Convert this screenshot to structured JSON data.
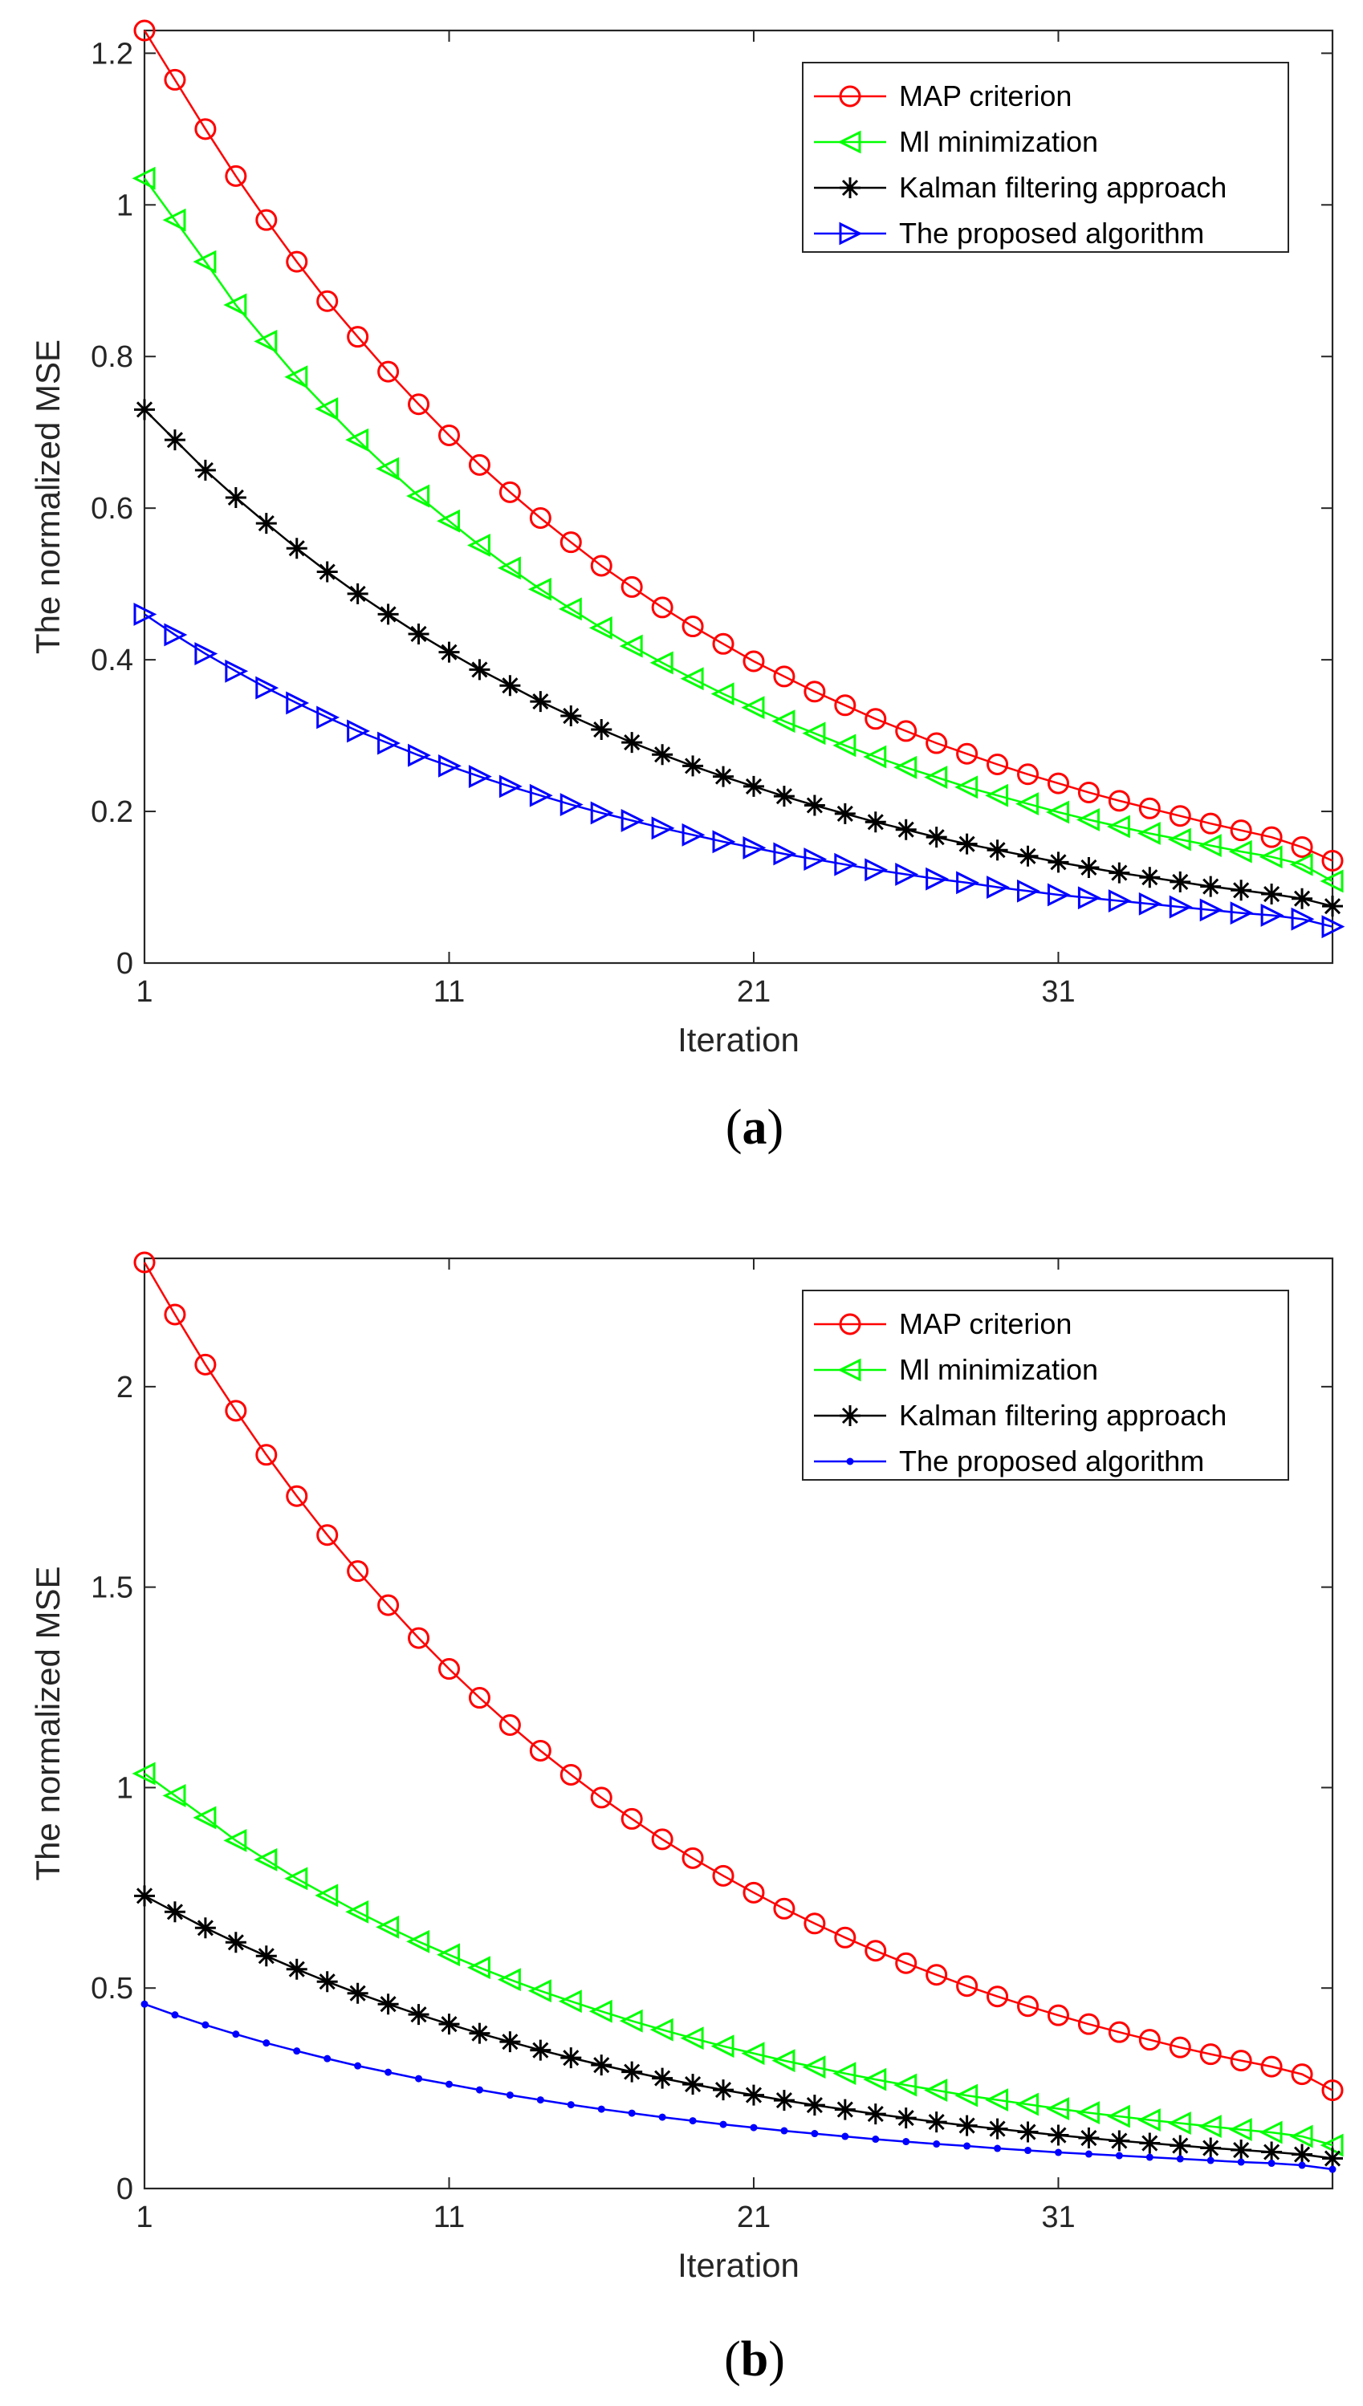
{
  "colors": {
    "map": "#ff0000",
    "ml": "#00ff00",
    "kalman": "#000000",
    "proposed": "#0000ff"
  },
  "chart_data": [
    {
      "type": "line",
      "caption_letter": "a",
      "xlabel": "Iteration",
      "ylabel": "The normalized MSE",
      "xlim": [
        1,
        40
      ],
      "ylim": [
        0,
        1.23
      ],
      "xticks": [
        1,
        11,
        21,
        31
      ],
      "xtick_labels": [
        "1",
        "11",
        "21",
        "31"
      ],
      "yticks": [
        0,
        0.2,
        0.4,
        0.6,
        0.8,
        1.0,
        1.2
      ],
      "ytick_labels": [
        "0",
        "0.2",
        "0.4",
        "0.6",
        "0.8",
        "1",
        "1.2"
      ],
      "legend_position": "top-right",
      "x": [
        1,
        2,
        3,
        4,
        5,
        6,
        7,
        8,
        9,
        10,
        11,
        12,
        13,
        14,
        15,
        16,
        17,
        18,
        19,
        20,
        21,
        22,
        23,
        24,
        25,
        26,
        27,
        28,
        29,
        30,
        31,
        32,
        33,
        34,
        35,
        36,
        37,
        38,
        39,
        40
      ],
      "series": [
        {
          "name": "MAP criterion",
          "color_key": "map",
          "marker": "circle",
          "values": [
            1.23,
            1.165,
            1.1,
            1.038,
            0.98,
            0.925,
            0.873,
            0.826,
            0.78,
            0.737,
            0.696,
            0.657,
            0.621,
            0.587,
            0.555,
            0.524,
            0.496,
            0.469,
            0.444,
            0.421,
            0.398,
            0.378,
            0.358,
            0.34,
            0.322,
            0.306,
            0.29,
            0.276,
            0.262,
            0.249,
            0.237,
            0.225,
            0.214,
            0.204,
            0.194,
            0.184,
            0.175,
            0.166,
            0.153,
            0.135
          ]
        },
        {
          "name": "Ml minimization",
          "color_key": "ml",
          "marker": "triangle-left",
          "values": [
            1.035,
            0.98,
            0.925,
            0.868,
            0.82,
            0.773,
            0.731,
            0.69,
            0.652,
            0.616,
            0.583,
            0.551,
            0.521,
            0.493,
            0.467,
            0.442,
            0.418,
            0.396,
            0.375,
            0.355,
            0.337,
            0.319,
            0.303,
            0.287,
            0.272,
            0.258,
            0.245,
            0.232,
            0.221,
            0.21,
            0.199,
            0.189,
            0.18,
            0.171,
            0.163,
            0.155,
            0.147,
            0.14,
            0.13,
            0.108
          ]
        },
        {
          "name": "Kalman filtering approach",
          "color_key": "kalman",
          "marker": "asterisk",
          "values": [
            0.73,
            0.69,
            0.65,
            0.614,
            0.58,
            0.547,
            0.516,
            0.487,
            0.46,
            0.434,
            0.41,
            0.387,
            0.366,
            0.345,
            0.326,
            0.308,
            0.291,
            0.275,
            0.26,
            0.246,
            0.233,
            0.22,
            0.208,
            0.197,
            0.186,
            0.176,
            0.166,
            0.157,
            0.149,
            0.141,
            0.133,
            0.126,
            0.119,
            0.113,
            0.107,
            0.101,
            0.096,
            0.091,
            0.085,
            0.075
          ]
        },
        {
          "name": "The proposed algorithm",
          "color_key": "proposed",
          "marker": "triangle-right",
          "values": [
            0.46,
            0.433,
            0.408,
            0.385,
            0.363,
            0.343,
            0.324,
            0.306,
            0.29,
            0.274,
            0.26,
            0.246,
            0.233,
            0.221,
            0.209,
            0.198,
            0.188,
            0.178,
            0.169,
            0.16,
            0.152,
            0.144,
            0.137,
            0.13,
            0.123,
            0.117,
            0.111,
            0.106,
            0.1,
            0.095,
            0.09,
            0.086,
            0.082,
            0.078,
            0.074,
            0.07,
            0.066,
            0.063,
            0.058,
            0.048
          ]
        }
      ]
    },
    {
      "type": "line",
      "caption_letter": "b",
      "xlabel": "Iteration",
      "ylabel": "The normalized MSE",
      "xlim": [
        1,
        40
      ],
      "ylim": [
        0,
        2.32
      ],
      "xticks": [
        1,
        11,
        21,
        31
      ],
      "xtick_labels": [
        "1",
        "11",
        "21",
        "31"
      ],
      "yticks": [
        0,
        0.5,
        1.0,
        1.5,
        2.0
      ],
      "ytick_labels": [
        "0",
        "0.5",
        "1",
        "1.5",
        "2"
      ],
      "legend_position": "top-right",
      "x": [
        1,
        2,
        3,
        4,
        5,
        6,
        7,
        8,
        9,
        10,
        11,
        12,
        13,
        14,
        15,
        16,
        17,
        18,
        19,
        20,
        21,
        22,
        23,
        24,
        25,
        26,
        27,
        28,
        29,
        30,
        31,
        32,
        33,
        34,
        35,
        36,
        37,
        38,
        39,
        40
      ],
      "series": [
        {
          "name": "MAP criterion",
          "color_key": "map",
          "marker": "circle",
          "values": [
            2.31,
            2.18,
            2.055,
            1.94,
            1.83,
            1.727,
            1.63,
            1.54,
            1.455,
            1.373,
            1.296,
            1.224,
            1.156,
            1.092,
            1.032,
            0.975,
            0.922,
            0.871,
            0.824,
            0.78,
            0.738,
            0.698,
            0.661,
            0.626,
            0.593,
            0.562,
            0.533,
            0.505,
            0.479,
            0.455,
            0.432,
            0.41,
            0.39,
            0.371,
            0.352,
            0.335,
            0.319,
            0.304,
            0.285,
            0.245
          ]
        },
        {
          "name": "Ml minimization",
          "color_key": "ml",
          "marker": "triangle-left",
          "values": [
            1.035,
            0.98,
            0.925,
            0.868,
            0.82,
            0.773,
            0.731,
            0.69,
            0.652,
            0.616,
            0.583,
            0.551,
            0.521,
            0.493,
            0.467,
            0.442,
            0.418,
            0.396,
            0.375,
            0.355,
            0.337,
            0.319,
            0.303,
            0.287,
            0.272,
            0.258,
            0.245,
            0.232,
            0.221,
            0.21,
            0.199,
            0.189,
            0.18,
            0.171,
            0.163,
            0.155,
            0.147,
            0.14,
            0.13,
            0.108
          ]
        },
        {
          "name": "Kalman filtering approach",
          "color_key": "kalman",
          "marker": "asterisk",
          "values": [
            0.73,
            0.69,
            0.65,
            0.614,
            0.58,
            0.547,
            0.516,
            0.487,
            0.46,
            0.434,
            0.41,
            0.387,
            0.366,
            0.345,
            0.326,
            0.308,
            0.291,
            0.275,
            0.26,
            0.246,
            0.233,
            0.22,
            0.208,
            0.197,
            0.186,
            0.176,
            0.166,
            0.157,
            0.149,
            0.141,
            0.133,
            0.126,
            0.119,
            0.113,
            0.107,
            0.101,
            0.096,
            0.091,
            0.085,
            0.075
          ]
        },
        {
          "name": "The proposed algorithm",
          "color_key": "proposed",
          "marker": "dot",
          "values": [
            0.46,
            0.433,
            0.408,
            0.385,
            0.363,
            0.343,
            0.324,
            0.306,
            0.29,
            0.274,
            0.26,
            0.246,
            0.233,
            0.221,
            0.209,
            0.198,
            0.188,
            0.178,
            0.169,
            0.16,
            0.152,
            0.144,
            0.137,
            0.13,
            0.123,
            0.117,
            0.111,
            0.106,
            0.1,
            0.095,
            0.09,
            0.086,
            0.082,
            0.078,
            0.074,
            0.07,
            0.066,
            0.063,
            0.058,
            0.048
          ]
        }
      ]
    }
  ]
}
